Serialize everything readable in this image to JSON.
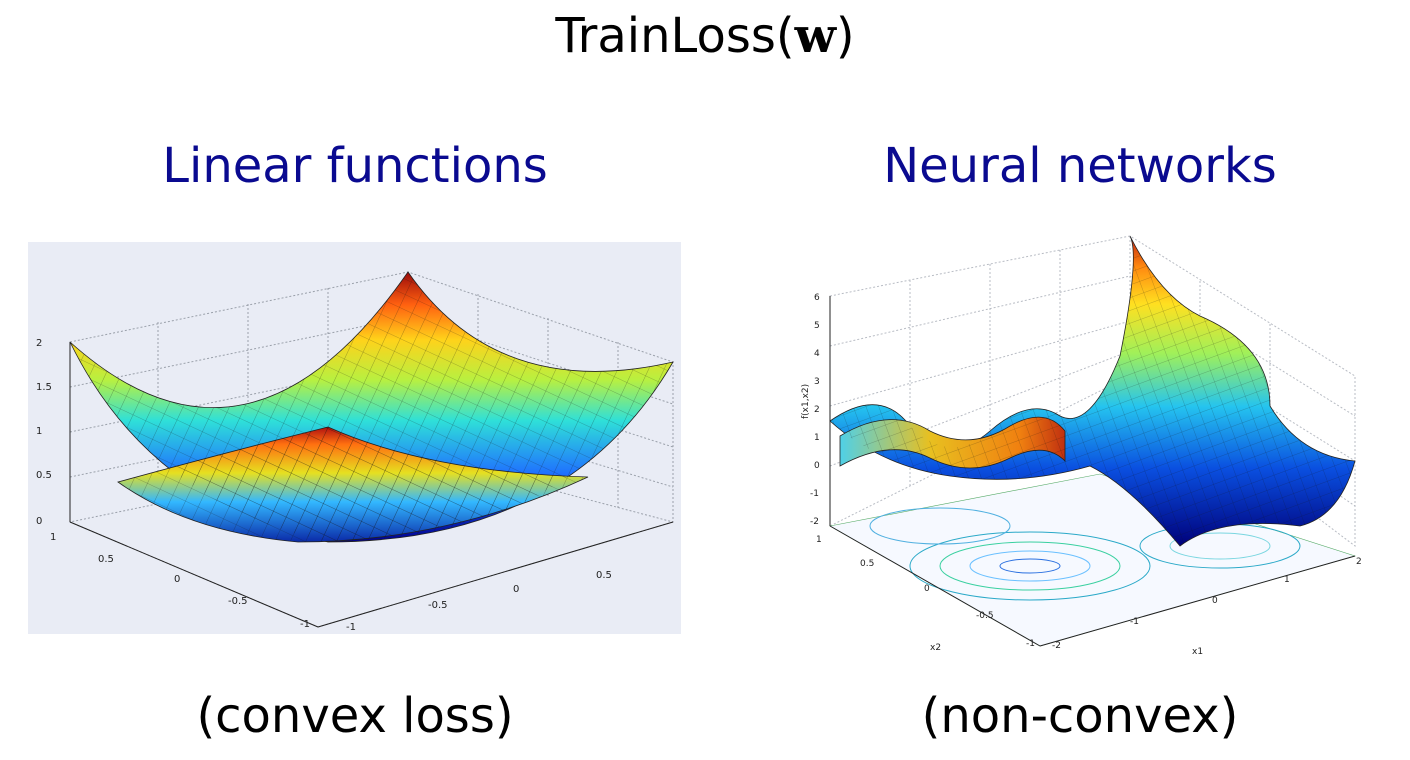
{
  "title": {
    "main": "TrainLoss",
    "paren_open": "(",
    "var": "w",
    "paren_close": ")"
  },
  "left": {
    "heading": "Linear functions",
    "caption": "(convex loss)",
    "z_ticks": [
      "2",
      "1.5",
      "1",
      "0.5",
      "0"
    ],
    "x_ticks": [
      "1",
      "0.5",
      "0",
      "-0.5",
      "-1"
    ],
    "y_ticks": [
      "-1",
      "-0.5",
      "0",
      "0.5"
    ]
  },
  "right": {
    "heading": "Neural networks",
    "caption": "(non-convex)",
    "z_ticks": [
      "6",
      "5",
      "4",
      "3",
      "2",
      "1",
      "0",
      "-1",
      "-2"
    ],
    "x_ticks": [
      "1",
      "0.5",
      "0",
      "-0.5",
      "-1"
    ],
    "y_ticks": [
      "-2",
      "-1",
      "0",
      "1",
      "2"
    ],
    "z_label": "f(x1,x2)",
    "x_label": "x2",
    "y_label": "x1"
  }
}
